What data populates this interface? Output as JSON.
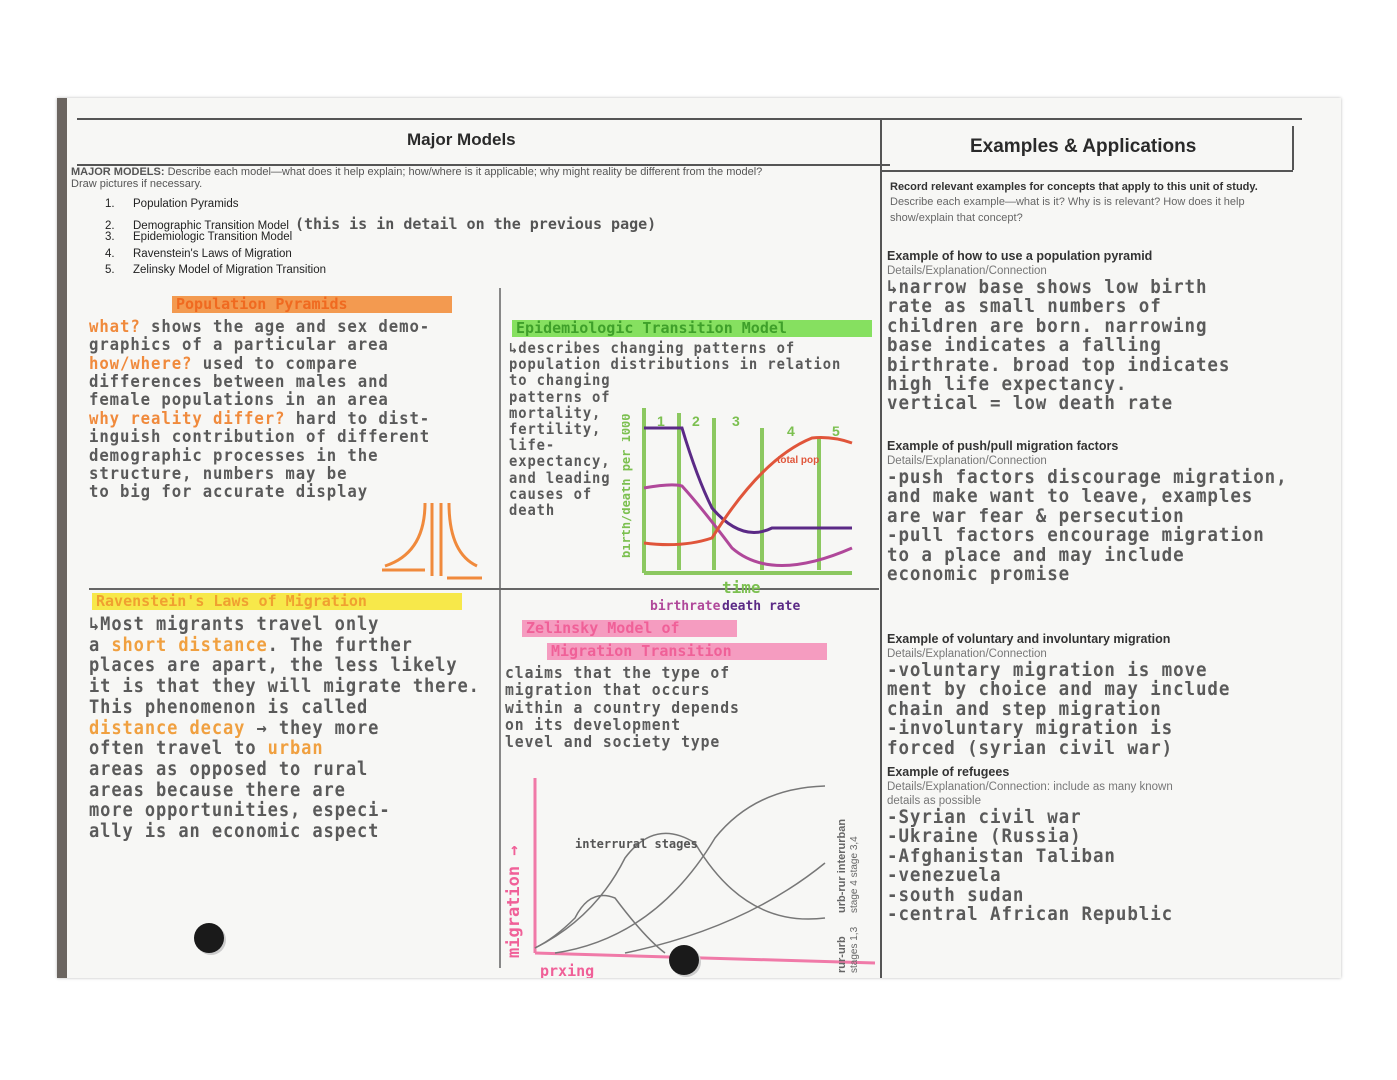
{
  "header": {
    "left_title": "Major Models",
    "right_title": "Examples & Applications"
  },
  "instructions": {
    "label": "MAJOR MODELS:",
    "text": "Describe each model—what does it help explain; how/where is it applicable; why might reality be different from the model?",
    "text2": "Draw pictures if necessary.",
    "models": [
      {
        "num": "1.",
        "name": "Population Pyramids",
        "note": ""
      },
      {
        "num": "2.",
        "name": "Demographic Transition Model",
        "note": "(this is in detail on the previous page)"
      },
      {
        "num": "3.",
        "name": "Epidemiologic Transition Model",
        "note": ""
      },
      {
        "num": "4.",
        "name": "Ravenstein's Laws of Migration",
        "note": ""
      },
      {
        "num": "5.",
        "name": "Zelinsky Model of Migration Transition",
        "note": ""
      }
    ]
  },
  "pyramids": {
    "title": "Population Pyramids",
    "what_label": "what?",
    "what": [
      "shows the age and sex demo-",
      "graphics of a particular area"
    ],
    "how_label": "how/where?",
    "how": [
      "used to compare",
      "differences between males and",
      "female populations in an area"
    ],
    "why_label": "why reality differ?",
    "why": [
      "hard to dist-",
      "inguish contribution of different",
      "demographic processes in the",
      "structure, numbers may be",
      "to big for accurate display"
    ]
  },
  "epi": {
    "title": "Epidemiologic Transition Model",
    "lines": [
      "↳describes changing patterns of",
      "population distributions in relation",
      "to changing",
      "patterns of",
      "mortality,",
      "fertility,",
      "life-",
      "expectancy,",
      "and leading",
      "causes of",
      "death"
    ],
    "chart": {
      "ylabel": "birth/death per 1000",
      "xlabel": "time",
      "stages": [
        "1",
        "2",
        "3",
        "4",
        "5"
      ],
      "total_label": "total pop",
      "legend_birth": "birthrate",
      "legend_death": "death rate"
    }
  },
  "ravenstein": {
    "title": "Ravenstein's Laws of Migration",
    "lines": [
      "↳Most migrants travel only",
      "a |short distance|. The further",
      "places are apart, the less likely",
      "it is that they will migrate there.",
      "This phenomenon is called",
      "|distance decay| → they more",
      "often travel to |urban|",
      "areas as opposed to rural",
      "areas because there are",
      "more opportunities, especi-",
      "ally is an economic aspect"
    ]
  },
  "zelinsky": {
    "title_1": "Zelinsky Model of",
    "title_2": "Migration Transition",
    "lines": [
      "claims that the type of",
      "migration that occurs",
      "within a country depends",
      "on its development",
      "level and society type"
    ],
    "chart": {
      "ylabel": "migration →",
      "xlabel": "prxing",
      "annot": "interrural stages",
      "right_1": "rur-urb",
      "right_1b": "stages 1,3",
      "right_2": "urb-rur interurban",
      "right_2b": "stage 4  stage 3,4"
    }
  },
  "examples": {
    "intro_bold": "Record relevant examples for concepts that apply to this unit of study.",
    "intro": "Describe each example—what is it? Why is is relevant? How does it help show/explain that concept?",
    "sections": [
      {
        "title": "Example of how to use a population pyramid",
        "sub": "Details/Explanation/Connection",
        "lines": [
          "↳narrow base shows low birth",
          "rate as small numbers of",
          "children are born. narrowing",
          "base indicates a falling",
          "birthrate. broad top indicates",
          "high life expectancy.",
          "vertical = low death rate"
        ]
      },
      {
        "title": "Example of push/pull migration factors",
        "sub": "Details/Explanation/Connection",
        "lines": [
          "-push factors discourage migration,",
          "and make want to leave, examples",
          "are war fear & persecution",
          "-pull factors encourage migration",
          "to a place and may include",
          "economic promise"
        ]
      },
      {
        "title": "Example of voluntary and involuntary migration",
        "sub": "Details/Explanation/Connection",
        "lines": [
          "-voluntary migration is move",
          "ment by choice and may include",
          "chain and step migration",
          "-involuntary migration is",
          "forced (syrian civil war)"
        ]
      },
      {
        "title": "Example of refugees",
        "sub": "Details/Explanation/Connection: include as many known",
        "sub2": "details as possible",
        "lines": [
          "-Syrian civil war",
          "-Ukraine (Russia)",
          "-Afghanistan Taliban",
          "-venezuela",
          "-south sudan",
          "-central African Republic"
        ]
      }
    ]
  },
  "colors": {
    "orange": "#f08a3c",
    "green": "#7ed957",
    "yellow": "#f7e84a",
    "pink": "#f07aa8",
    "purple": "#5b2a86",
    "magenta": "#b0489a",
    "red": "#e0553a"
  }
}
